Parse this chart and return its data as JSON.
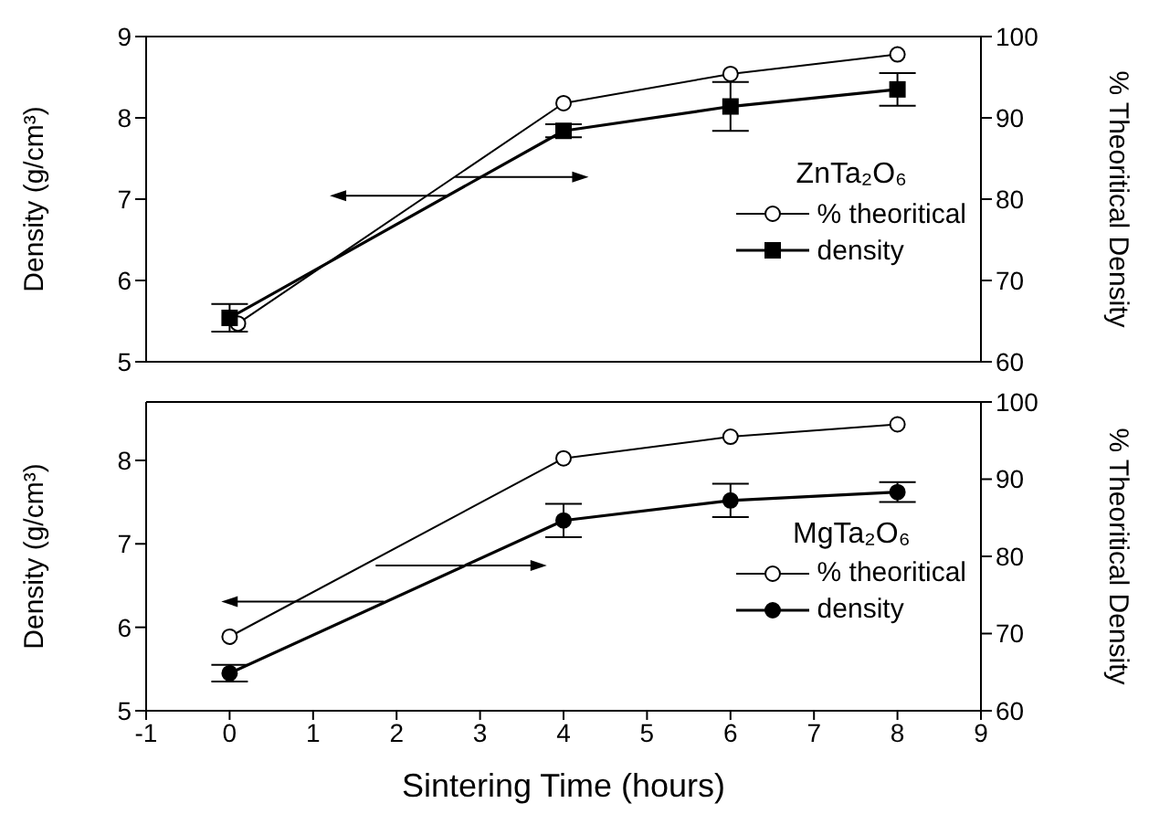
{
  "chart_data": [
    {
      "type": "line",
      "legend_title": "ZnTa₂O₆",
      "ylabel": "Density (g/cm³)",
      "y2label": "% Theoritical Density",
      "xlim": [
        -1,
        9
      ],
      "xticks": [
        -1,
        0,
        1,
        2,
        3,
        4,
        5,
        6,
        7,
        8,
        9
      ],
      "ylim": [
        5,
        9
      ],
      "yticks": [
        5,
        6,
        7,
        8,
        9
      ],
      "y2lim": [
        60,
        100
      ],
      "y2ticks": [
        60,
        70,
        80,
        90,
        100
      ],
      "tick_labels": "y",
      "legend": "right",
      "line_style": "solid",
      "grid": false,
      "series": [
        {
          "name": "% theoritical",
          "color": "#000000",
          "axis": "y2",
          "marker": "circle",
          "x": [
            0.1,
            4,
            6,
            8
          ],
          "values": [
            64.7,
            91.8,
            95.4,
            97.8
          ]
        },
        {
          "name": "density",
          "color": "#000000",
          "marker": "square",
          "x": [
            0,
            4,
            6,
            8
          ],
          "values": [
            5.54,
            7.84,
            8.14,
            8.35
          ],
          "errors": [
            0.17,
            0.08,
            0.3,
            0.2
          ]
        }
      ]
    },
    {
      "type": "line",
      "legend_title": "MgTa₂O₆",
      "xlabel": "Sintering Time (hours)",
      "ylabel": "Density (g/cm³)",
      "y2label": "% Theoritical Density",
      "xlim": [
        -1,
        9
      ],
      "xticks": [
        -1,
        0,
        1,
        2,
        3,
        4,
        5,
        6,
        7,
        8,
        9
      ],
      "ylim": [
        5,
        8.7
      ],
      "yticks": [
        5,
        6,
        7,
        8
      ],
      "y2lim": [
        60,
        100
      ],
      "y2ticks": [
        60,
        70,
        80,
        90,
        100
      ],
      "legend": "right",
      "line_style": "solid",
      "grid": false,
      "series": [
        {
          "name": "% theoritical",
          "color": "#000000",
          "axis": "y2",
          "marker": "circle",
          "x": [
            0,
            4,
            6,
            8
          ],
          "values": [
            69.6,
            92.7,
            95.5,
            97.1
          ]
        },
        {
          "name": "density",
          "color": "#000000",
          "marker": "circle",
          "x": [
            0,
            4,
            6,
            8
          ],
          "values": [
            5.45,
            7.28,
            7.52,
            7.62
          ],
          "errors": [
            0.1,
            0.2,
            0.2,
            0.12
          ]
        }
      ]
    }
  ]
}
